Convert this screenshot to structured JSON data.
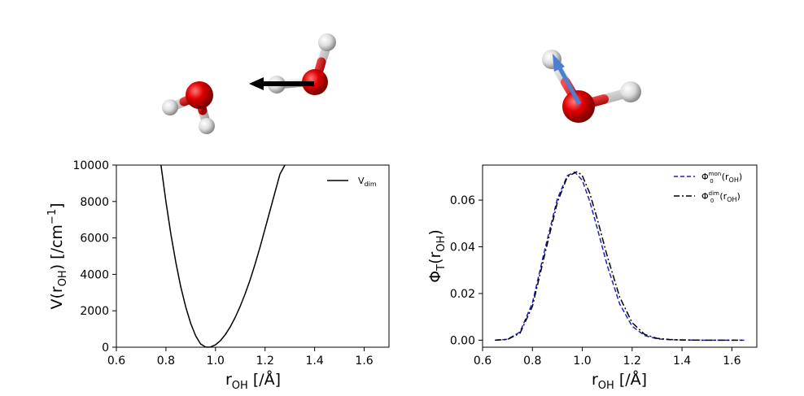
{
  "colors": {
    "dim_line": "#000000",
    "mon_line": "#1f1fcc",
    "oxygen": "#d40000",
    "hydrogen": "#e6e6e6",
    "arrow_black": "#000000",
    "arrow_blue": "#4a7fd4"
  },
  "chart_data": [
    {
      "type": "line",
      "ylabel": {
        "main": "V(r",
        "sub": "OH",
        "tail": ") [/cm",
        "sup": "−1",
        "end": "]"
      },
      "xlabel": {
        "main": "r",
        "sub": "OH",
        "tail": " [/Å]"
      },
      "xlim": [
        0.6,
        1.7
      ],
      "ylim": [
        0,
        10000
      ],
      "xticks": [
        "0.6",
        "0.8",
        "1.0",
        "1.2",
        "1.4",
        "1.6"
      ],
      "yticks": [
        "0",
        "2000",
        "4000",
        "6000",
        "8000",
        "10000"
      ],
      "legend_position": "top-right",
      "series": [
        {
          "name": {
            "main": "V",
            "sub": "dim"
          },
          "style": "solid",
          "x": [
            0.78,
            0.8,
            0.82,
            0.84,
            0.86,
            0.88,
            0.9,
            0.92,
            0.94,
            0.96,
            0.97,
            0.98,
            1.0,
            1.02,
            1.04,
            1.06,
            1.08,
            1.1,
            1.12,
            1.14,
            1.16,
            1.18,
            1.2,
            1.22,
            1.24,
            1.26,
            1.28
          ],
          "y": [
            10000,
            8000,
            6200,
            4650,
            3300,
            2200,
            1300,
            620,
            180,
            10,
            0,
            15,
            130,
            360,
            700,
            1130,
            1650,
            2260,
            2950,
            3720,
            4570,
            5500,
            6500,
            7500,
            8500,
            9500,
            10000
          ]
        }
      ]
    },
    {
      "type": "line",
      "ylabel": {
        "main": "Φ",
        "sub": "T",
        "tail": "(r",
        "sub2": "OH",
        "end": ")"
      },
      "xlabel": {
        "main": "r",
        "sub": "OH",
        "tail": " [/Å]"
      },
      "xlim": [
        0.6,
        1.7
      ],
      "ylim": [
        -0.003,
        0.075
      ],
      "xticks": [
        "0.6",
        "0.8",
        "1.0",
        "1.2",
        "1.4",
        "1.6"
      ],
      "yticks": [
        "0.00",
        "0.02",
        "0.04",
        "0.06"
      ],
      "legend_position": "top-right",
      "series": [
        {
          "name": {
            "main": "Φ",
            "sup": "mon",
            "sub": "0",
            "tail": "(r",
            "sub2": "OH",
            "end": ")"
          },
          "style": "dashed",
          "x": [
            0.65,
            0.7,
            0.75,
            0.8,
            0.85,
            0.9,
            0.94,
            0.97,
            1.0,
            1.03,
            1.06,
            1.1,
            1.15,
            1.2,
            1.25,
            1.3,
            1.35,
            1.4,
            1.5,
            1.65
          ],
          "y": [
            0.0,
            0.0004,
            0.0035,
            0.016,
            0.039,
            0.0605,
            0.0705,
            0.072,
            0.0685,
            0.0595,
            0.048,
            0.032,
            0.0155,
            0.006,
            0.002,
            0.0006,
            0.0002,
            0.0001,
            0.0,
            0.0
          ]
        },
        {
          "name": {
            "main": "Φ",
            "sup": "dim",
            "sub": "0",
            "tail": "(r",
            "sub2": "OH",
            "end": ")"
          },
          "style": "dashdot",
          "x": [
            0.65,
            0.7,
            0.75,
            0.8,
            0.85,
            0.9,
            0.94,
            0.98,
            1.0,
            1.03,
            1.06,
            1.1,
            1.15,
            1.2,
            1.25,
            1.3,
            1.35,
            1.4,
            1.5,
            1.65
          ],
          "y": [
            0.0,
            0.0003,
            0.003,
            0.0145,
            0.037,
            0.059,
            0.07,
            0.0722,
            0.0705,
            0.063,
            0.052,
            0.036,
            0.0185,
            0.0075,
            0.0025,
            0.0008,
            0.0003,
            0.0001,
            0.0,
            0.0
          ]
        }
      ]
    }
  ]
}
